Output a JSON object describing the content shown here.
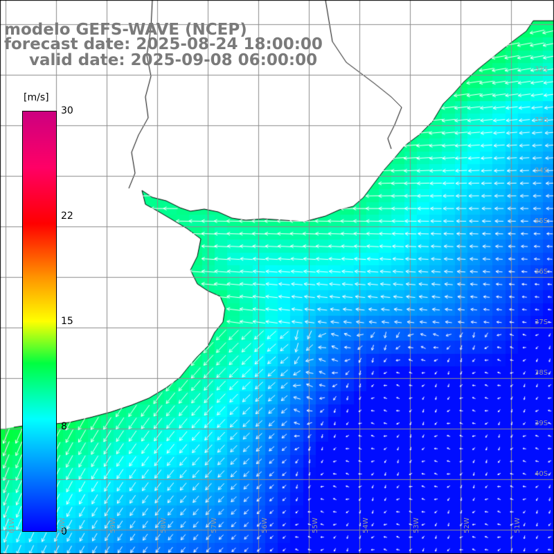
{
  "title": {
    "line1": "modelo GEFS-WAVE (NCEP)",
    "line2": "forecast date: 2025-08-24 18:00:00",
    "line3": "valid date: 2025-09-08 06:00:00"
  },
  "colorbar": {
    "unit": "[m/s]",
    "ticks": [
      "30",
      "22",
      "15",
      "8",
      "0"
    ],
    "tick_values": [
      30,
      22,
      15,
      8,
      0
    ],
    "min": 0,
    "max": 30,
    "stops": [
      {
        "v": 0,
        "c": "#0000ff"
      },
      {
        "v": 4,
        "c": "#0080ff"
      },
      {
        "v": 8,
        "c": "#00ffff"
      },
      {
        "v": 12,
        "c": "#00ff40"
      },
      {
        "v": 15,
        "c": "#ffff00"
      },
      {
        "v": 18,
        "c": "#ff9900"
      },
      {
        "v": 22,
        "c": "#ff0000"
      },
      {
        "v": 26,
        "c": "#ff0066"
      },
      {
        "v": 30,
        "c": "#cc0080"
      }
    ]
  },
  "lat_labels": [
    "32S",
    "33S",
    "34S",
    "35S",
    "36S",
    "37S",
    "38S",
    "39S",
    "40S"
  ],
  "lon_labels": [
    "61W",
    "60W",
    "59W",
    "58W",
    "57W",
    "56W",
    "55W",
    "54W",
    "53W",
    "52W",
    "51W"
  ],
  "colors": {
    "land": "#ffffff",
    "coast": "#000000",
    "grid": "#8c8c8c",
    "arrow": "#ffffff",
    "title": "#7a7a7a"
  },
  "field": {
    "description_units": "m/s",
    "flow_direction": "mostly westward north of 37S, southwestward toward the southwest corner, weak and variable in the southeast"
  }
}
